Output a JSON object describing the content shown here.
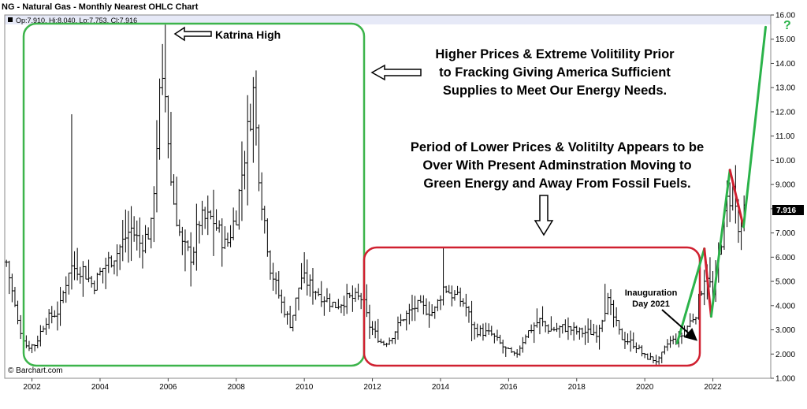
{
  "header": {
    "title": "NG - Natural Gas - Monthly Nearest OHLC Chart",
    "ohlc_readout": "Op:7.910, Hi:8.040, Lo:7.753, Cl:7.916"
  },
  "copyright": "© Barchart.com",
  "colors": {
    "green_box": "#3cb44b",
    "red_box": "#d02030",
    "green_line": "#2bb34a",
    "red_line": "#d02030",
    "last_price_bg": "#000000",
    "header_band": "#e6e9f7"
  },
  "annotations": {
    "katrina": "Katrina High",
    "higher_prices": [
      "Higher Prices & Extreme Volitility Prior",
      "to Fracking Giving America Sufficient",
      "Supplies to Meet Our Energy Needs."
    ],
    "lower_prices": [
      "Period of Lower Prices & Volitilty Appears to be",
      "Over With Present Adminstration Moving to",
      "Green Energy and Away From Fossil Fuels."
    ],
    "inauguration": [
      "Inauguration",
      "Day 2021"
    ],
    "question_mark": "?"
  },
  "chart_data": {
    "type": "ohlc",
    "frequency": "monthly",
    "title": "NG - Natural Gas - Monthly Nearest OHLC Chart",
    "xlim": [
      2001.2,
      2023.7
    ],
    "ylim": [
      1.0,
      16.0
    ],
    "x_ticks": [
      "2002",
      "2004",
      "2006",
      "2008",
      "2010",
      "2012",
      "2014",
      "2016",
      "2018",
      "2020",
      "2022"
    ],
    "y_ticks": [
      "1.000",
      "2.000",
      "3.000",
      "4.000",
      "5.000",
      "6.000",
      "7.000",
      "8.000",
      "9.000",
      "10.00",
      "11.00",
      "12.00",
      "13.00",
      "14.00",
      "15.00",
      "16.00"
    ],
    "last_price": "7.916",
    "anchors": [
      [
        2001.25,
        5.8
      ],
      [
        2001.6,
        3.2
      ],
      [
        2001.85,
        2.3
      ],
      [
        2002.1,
        2.4
      ],
      [
        2002.4,
        3.4
      ],
      [
        2002.8,
        3.8
      ],
      [
        2003.1,
        5.6
      ],
      [
        2003.5,
        5.5
      ],
      [
        2003.8,
        4.8
      ],
      [
        2004.1,
        5.6
      ],
      [
        2004.5,
        6.2
      ],
      [
        2004.9,
        7.2
      ],
      [
        2005.2,
        6.5
      ],
      [
        2005.5,
        7.2
      ],
      [
        2005.75,
        12.5
      ],
      [
        2005.9,
        13.0
      ],
      [
        2006.1,
        8.8
      ],
      [
        2006.4,
        6.5
      ],
      [
        2006.7,
        6.0
      ],
      [
        2006.9,
        7.5
      ],
      [
        2007.3,
        7.6
      ],
      [
        2007.7,
        6.4
      ],
      [
        2008.0,
        7.8
      ],
      [
        2008.5,
        12.8
      ],
      [
        2008.7,
        9.0
      ],
      [
        2009.0,
        5.6
      ],
      [
        2009.3,
        4.2
      ],
      [
        2009.6,
        3.2
      ],
      [
        2009.9,
        5.2
      ],
      [
        2010.2,
        4.8
      ],
      [
        2010.6,
        4.3
      ],
      [
        2010.9,
        4.0
      ],
      [
        2011.3,
        4.3
      ],
      [
        2011.7,
        4.3
      ],
      [
        2011.9,
        3.2
      ],
      [
        2012.3,
        2.4
      ],
      [
        2012.5,
        2.6
      ],
      [
        2012.9,
        3.5
      ],
      [
        2013.3,
        4.0
      ],
      [
        2013.8,
        3.7
      ],
      [
        2014.1,
        4.8
      ],
      [
        2014.3,
        4.5
      ],
      [
        2014.7,
        4.1
      ],
      [
        2015.0,
        3.0
      ],
      [
        2015.5,
        2.8
      ],
      [
        2015.9,
        2.2
      ],
      [
        2016.2,
        1.9
      ],
      [
        2016.5,
        2.8
      ],
      [
        2016.9,
        3.4
      ],
      [
        2017.2,
        3.0
      ],
      [
        2017.6,
        3.1
      ],
      [
        2018.1,
        2.9
      ],
      [
        2018.6,
        2.9
      ],
      [
        2018.9,
        4.2
      ],
      [
        2019.3,
        2.7
      ],
      [
        2019.7,
        2.4
      ],
      [
        2020.0,
        1.9
      ],
      [
        2020.4,
        1.7
      ],
      [
        2020.7,
        2.5
      ],
      [
        2021.0,
        2.6
      ],
      [
        2021.5,
        3.7
      ],
      [
        2021.8,
        5.5
      ],
      [
        2022.0,
        4.4
      ],
      [
        2022.4,
        8.2
      ],
      [
        2022.6,
        8.8
      ],
      [
        2022.8,
        6.5
      ],
      [
        2022.92,
        7.916
      ]
    ],
    "spikes": [
      [
        2003.15,
        11.9
      ],
      [
        2005.8,
        14.8
      ],
      [
        2005.95,
        15.6
      ],
      [
        2008.55,
        13.7
      ],
      [
        2014.1,
        6.4
      ],
      [
        2018.85,
        4.9
      ],
      [
        2022.65,
        9.8
      ]
    ],
    "trend_lines": [
      {
        "color": "green",
        "points": [
          [
            2020.95,
            2.45
          ],
          [
            2021.75,
            6.35
          ]
        ]
      },
      {
        "color": "red",
        "points": [
          [
            2021.75,
            6.35
          ],
          [
            2021.95,
            3.55
          ]
        ]
      },
      {
        "color": "green",
        "points": [
          [
            2021.95,
            3.55
          ],
          [
            2022.5,
            9.6
          ]
        ]
      },
      {
        "color": "red",
        "points": [
          [
            2022.5,
            9.6
          ],
          [
            2022.9,
            7.25
          ]
        ]
      },
      {
        "color": "green",
        "points": [
          [
            2022.9,
            7.25
          ],
          [
            2023.55,
            15.5
          ]
        ]
      }
    ],
    "grid": false
  }
}
